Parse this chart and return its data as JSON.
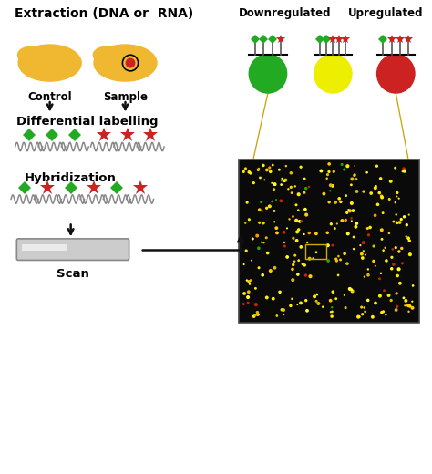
{
  "title": "Extraction (DNA or  RNA)",
  "bg_color": "#ffffff",
  "label_control": "Control",
  "label_sample": "Sample",
  "label_diff": "Differential labelling",
  "label_hybrid": "Hybridization",
  "label_scan": "Scan",
  "label_downreg": "Downregulated",
  "label_upreg": "Upregulated",
  "cell_color": "#F0B830",
  "green_color": "#22aa22",
  "red_color": "#cc2222",
  "yellow_color": "#eeee00",
  "arrow_color": "#111111",
  "figure_width": 4.74,
  "figure_height": 5.2,
  "xlim": [
    0,
    10
  ],
  "ylim": [
    0,
    11
  ]
}
